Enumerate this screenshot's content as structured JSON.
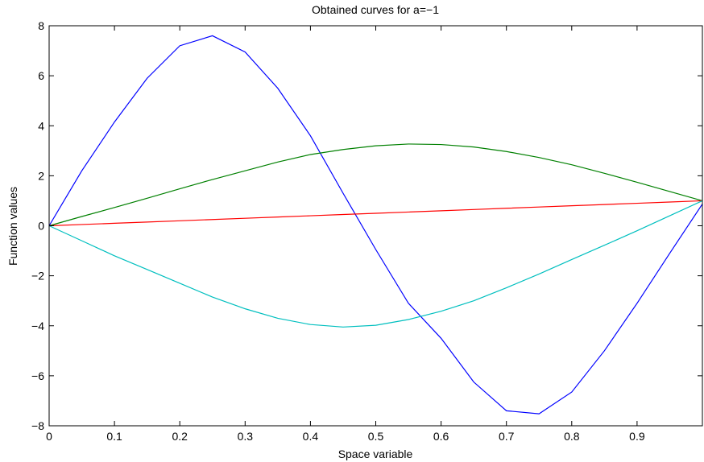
{
  "chart_data": {
    "type": "line",
    "title": "Obtained curves for a=−1",
    "xlabel": "Space variable",
    "ylabel": "Function values",
    "xlim": [
      0,
      1
    ],
    "ylim": [
      -8,
      8
    ],
    "xticks": [
      0,
      0.1,
      0.2,
      0.3,
      0.4,
      0.5,
      0.6,
      0.7,
      0.8,
      0.9
    ],
    "xtick_labels": [
      "0",
      "0.1",
      "0.2",
      "0.3",
      "0.4",
      "0.5",
      "0.6",
      "0.7",
      "0.8",
      "0.9"
    ],
    "yticks": [
      -8,
      -6,
      -4,
      -2,
      0,
      2,
      4,
      6,
      8
    ],
    "ytick_labels": [
      "−8",
      "−6",
      "−4",
      "−2",
      "0",
      "2",
      "4",
      "6",
      "8"
    ],
    "grid": false,
    "x": [
      0,
      0.05,
      0.1,
      0.15,
      0.2,
      0.25,
      0.3,
      0.35,
      0.4,
      0.45,
      0.5,
      0.55,
      0.6,
      0.65,
      0.7,
      0.75,
      0.8,
      0.85,
      0.9,
      0.95,
      1.0
    ],
    "series": [
      {
        "color": "#0000ff",
        "values": [
          0,
          2.2,
          4.15,
          5.9,
          7.2,
          7.6,
          6.95,
          5.5,
          3.6,
          1.3,
          -0.95,
          -3.1,
          -4.5,
          -6.25,
          -7.4,
          -7.52,
          -6.65,
          -5.0,
          -3.1,
          -1.1,
          0.87
        ]
      },
      {
        "color": "#008000",
        "values": [
          0,
          0.37,
          0.73,
          1.1,
          1.48,
          1.85,
          2.2,
          2.55,
          2.85,
          3.05,
          3.2,
          3.27,
          3.25,
          3.15,
          2.97,
          2.73,
          2.44,
          2.1,
          1.74,
          1.37,
          1.0
        ]
      },
      {
        "color": "#ff0000",
        "values": [
          0,
          0.05,
          0.1,
          0.15,
          0.2,
          0.25,
          0.3,
          0.35,
          0.4,
          0.45,
          0.5,
          0.55,
          0.6,
          0.65,
          0.7,
          0.75,
          0.8,
          0.85,
          0.9,
          0.95,
          1.0
        ]
      },
      {
        "color": "#00bfbf",
        "values": [
          0,
          -0.6,
          -1.2,
          -1.75,
          -2.3,
          -2.85,
          -3.32,
          -3.7,
          -3.95,
          -4.05,
          -3.98,
          -3.75,
          -3.42,
          -3.0,
          -2.48,
          -1.93,
          -1.35,
          -0.78,
          -0.2,
          0.4,
          1.0
        ]
      }
    ]
  }
}
